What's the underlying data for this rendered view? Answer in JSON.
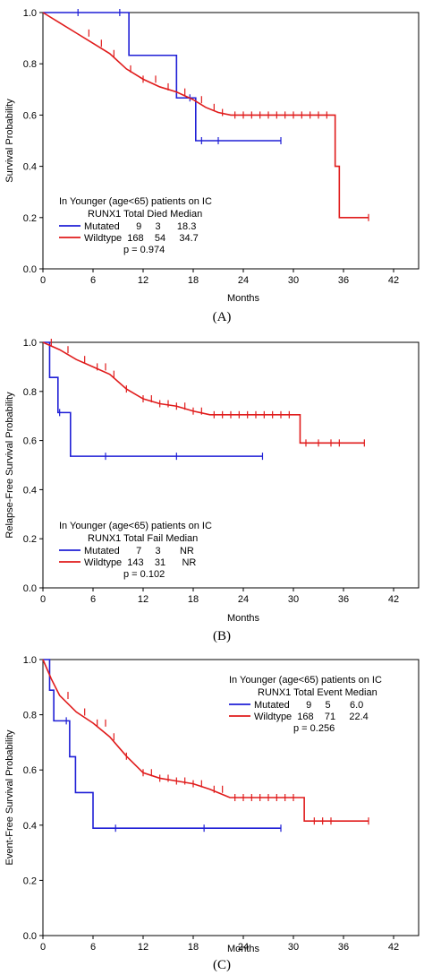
{
  "colors": {
    "mutated": "#1f1fd6",
    "wildtype": "#e01b1b",
    "axis": "#000000"
  },
  "chart_data": [
    {
      "type": "line",
      "panel_label": "(A)",
      "xlabel": "Months",
      "ylabel": "Survival Probability",
      "xlim": [
        0,
        45
      ],
      "ylim": [
        0,
        1.0
      ],
      "xticks": [
        0,
        6,
        12,
        18,
        24,
        30,
        36,
        42
      ],
      "yticks": [
        0.0,
        0.2,
        0.4,
        0.6,
        0.8,
        1.0
      ],
      "legend": {
        "position": "bottom-left",
        "title": "In Younger (age<65) patients on IC",
        "header": "RUNX1  Total Died Median",
        "rows": [
          "Mutated      9     3      18.3",
          "Wildtype  168    54     34.7"
        ],
        "pvalue": "p = 0.974"
      },
      "series": [
        {
          "name": "Mutated",
          "color": "mutated",
          "x": [
            0,
            10.3,
            10.3,
            16.0,
            16.0,
            18.3,
            18.3,
            28.5
          ],
          "y": [
            1.0,
            1.0,
            0.833,
            0.833,
            0.667,
            0.667,
            0.5,
            0.5
          ],
          "censor_x": [
            4.2,
            9.2,
            17.6,
            19.0,
            21.0,
            28.5
          ]
        },
        {
          "name": "Wildtype",
          "color": "wildtype",
          "x": [
            0,
            2,
            4,
            6,
            8,
            10,
            12,
            14,
            16,
            18,
            19.5,
            21,
            22.5,
            35.0,
            35.0,
            35.5,
            35.5,
            39
          ],
          "y": [
            1.0,
            0.96,
            0.92,
            0.88,
            0.84,
            0.78,
            0.74,
            0.71,
            0.69,
            0.66,
            0.63,
            0.61,
            0.6,
            0.6,
            0.4,
            0.4,
            0.2,
            0.2
          ],
          "censor_x": [
            5.5,
            7,
            8.5,
            10.5,
            12,
            13.5,
            15,
            17,
            19,
            20.5,
            21.5,
            23,
            24,
            25,
            26,
            27,
            28,
            29,
            30,
            31,
            32,
            33,
            34,
            39
          ]
        }
      ]
    },
    {
      "type": "line",
      "panel_label": "(B)",
      "xlabel": "Months",
      "ylabel": "Relapse-Free Survival Probability",
      "xlim": [
        0,
        45
      ],
      "ylim": [
        0,
        1.0
      ],
      "xticks": [
        0,
        6,
        12,
        18,
        24,
        30,
        36,
        42
      ],
      "yticks": [
        0.0,
        0.2,
        0.4,
        0.6,
        0.8,
        1.0
      ],
      "legend": {
        "position": "bottom-left",
        "title": "In Younger (age<65) patients on IC",
        "header": "RUNX1  Total Fail Median",
        "rows": [
          "Mutated      7     3       NR",
          "Wildtype  143    31      NR"
        ],
        "pvalue": "p = 0.102"
      },
      "series": [
        {
          "name": "Mutated",
          "color": "mutated",
          "x": [
            0,
            0.8,
            0.8,
            1.8,
            1.8,
            3.3,
            3.3,
            26.3
          ],
          "y": [
            1.0,
            1.0,
            0.857,
            0.857,
            0.714,
            0.714,
            0.536,
            0.536
          ],
          "censor_x": [
            2.0,
            7.5,
            16.0,
            26.3
          ]
        },
        {
          "name": "Wildtype",
          "color": "wildtype",
          "x": [
            0,
            2,
            4,
            6,
            8,
            10,
            12,
            14,
            16,
            18,
            20,
            30.8,
            30.8,
            38.5
          ],
          "y": [
            1.0,
            0.97,
            0.93,
            0.9,
            0.87,
            0.81,
            0.77,
            0.75,
            0.74,
            0.72,
            0.705,
            0.705,
            0.59,
            0.59
          ],
          "censor_x": [
            1.0,
            3,
            5,
            6.5,
            7.5,
            8.5,
            10,
            12,
            13,
            14,
            15,
            16,
            17,
            18,
            19,
            20.5,
            21.5,
            22.5,
            23.5,
            24.5,
            25.5,
            26.5,
            27.5,
            28.5,
            29.5,
            31.5,
            33,
            34.5,
            35.5,
            38.5
          ]
        }
      ]
    },
    {
      "type": "line",
      "panel_label": "(C)",
      "xlabel": "Months",
      "ylabel": "Event-Free Survival Probability",
      "xlim": [
        0,
        45
      ],
      "ylim": [
        0,
        1.0
      ],
      "xticks": [
        0,
        6,
        12,
        18,
        24,
        30,
        36,
        42
      ],
      "yticks": [
        0.0,
        0.2,
        0.4,
        0.6,
        0.8,
        1.0
      ],
      "legend": {
        "position": "top-right",
        "title": "In Younger (age<65) patients on IC",
        "header": "RUNX1  Total Event Median",
        "rows": [
          "Mutated      9     5       6.0",
          "Wildtype  168    71     22.4"
        ],
        "pvalue": "p = 0.256"
      },
      "series": [
        {
          "name": "Mutated",
          "color": "mutated",
          "x": [
            0,
            0.8,
            0.8,
            1.3,
            1.3,
            3.2,
            3.2,
            3.9,
            3.9,
            6.0,
            6.0,
            28.5
          ],
          "y": [
            1.0,
            1.0,
            0.889,
            0.889,
            0.778,
            0.778,
            0.648,
            0.648,
            0.518,
            0.518,
            0.389,
            0.389
          ],
          "censor_x": [
            2.8,
            8.7,
            19.3,
            28.5
          ]
        },
        {
          "name": "Wildtype",
          "color": "wildtype",
          "x": [
            0,
            1,
            2,
            4,
            6,
            8,
            10,
            12,
            14,
            16,
            18,
            20,
            22.4,
            31.3,
            31.3,
            39
          ],
          "y": [
            1.0,
            0.93,
            0.87,
            0.81,
            0.77,
            0.72,
            0.65,
            0.59,
            0.57,
            0.56,
            0.55,
            0.53,
            0.5,
            0.5,
            0.415,
            0.415
          ],
          "censor_x": [
            3,
            5,
            6.5,
            7.5,
            8.5,
            10,
            12,
            13,
            14,
            15,
            16,
            17,
            18,
            19,
            20.5,
            21.5,
            23,
            24,
            25,
            26,
            27,
            28,
            29,
            30,
            32.5,
            33.5,
            34.5,
            39
          ]
        }
      ]
    }
  ]
}
